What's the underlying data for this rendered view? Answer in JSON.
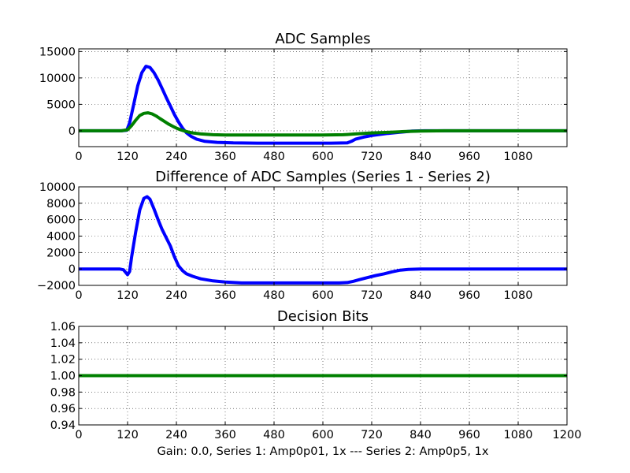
{
  "figure": {
    "xlabel": "Gain: 0.0, Series 1: Amp0p01, 1x --- Series 2: Amp0p5, 1x"
  },
  "colors": {
    "series1": "#0000ff",
    "series2": "#008000"
  },
  "chart_data": [
    {
      "type": "line",
      "title": "ADC Samples",
      "grid": true,
      "xlim": [
        0,
        1200
      ],
      "ylim": [
        -3000,
        15500
      ],
      "xticks": [
        0,
        120,
        240,
        360,
        480,
        600,
        720,
        840,
        960,
        1080
      ],
      "yticks": [
        0,
        5000,
        10000,
        15000
      ],
      "series": [
        {
          "color": "#0000ff",
          "x": [
            0,
            105,
            118,
            125,
            135,
            145,
            155,
            165,
            175,
            185,
            195,
            205,
            215,
            225,
            235,
            245,
            255,
            265,
            275,
            290,
            310,
            340,
            380,
            440,
            500,
            560,
            620,
            660,
            670,
            680,
            700,
            720,
            760,
            800,
            820,
            850,
            900,
            1000,
            1100,
            1200
          ],
          "y": [
            0,
            0,
            100,
            1500,
            5000,
            8500,
            11000,
            12200,
            12000,
            11000,
            9600,
            8000,
            6300,
            4700,
            3100,
            1700,
            500,
            -400,
            -1000,
            -1600,
            -2000,
            -2200,
            -2300,
            -2350,
            -2350,
            -2350,
            -2350,
            -2300,
            -2000,
            -1600,
            -1200,
            -900,
            -500,
            -200,
            -50,
            0,
            0,
            0,
            0,
            0
          ]
        },
        {
          "color": "#008000",
          "x": [
            0,
            105,
            120,
            130,
            140,
            150,
            160,
            170,
            180,
            190,
            200,
            210,
            220,
            230,
            240,
            250,
            260,
            270,
            280,
            300,
            330,
            360,
            400,
            450,
            500,
            550,
            600,
            650,
            660,
            680,
            700,
            720,
            760,
            800,
            840,
            900,
            1000,
            1100,
            1200
          ],
          "y": [
            0,
            0,
            200,
            1000,
            2000,
            2900,
            3300,
            3400,
            3200,
            2800,
            2300,
            1800,
            1300,
            900,
            500,
            200,
            -50,
            -250,
            -400,
            -600,
            -750,
            -800,
            -800,
            -800,
            -800,
            -800,
            -800,
            -750,
            -700,
            -600,
            -500,
            -400,
            -300,
            -150,
            -50,
            0,
            0,
            0,
            0
          ]
        }
      ]
    },
    {
      "type": "line",
      "title": "Difference of ADC Samples (Series 1 - Series 2)",
      "grid": true,
      "xlim": [
        0,
        1200
      ],
      "ylim": [
        -2000,
        10000
      ],
      "xticks": [
        0,
        120,
        240,
        360,
        480,
        600,
        720,
        840,
        960,
        1080
      ],
      "yticks": [
        -2000,
        0,
        2000,
        4000,
        6000,
        8000,
        10000
      ],
      "series": [
        {
          "color": "#0000ff",
          "x": [
            0,
            100,
            110,
            115,
            120,
            125,
            130,
            140,
            150,
            160,
            168,
            175,
            185,
            195,
            205,
            215,
            225,
            235,
            245,
            255,
            265,
            280,
            300,
            330,
            360,
            400,
            480,
            560,
            640,
            660,
            675,
            690,
            710,
            730,
            750,
            770,
            790,
            810,
            840,
            900,
            1000,
            1100,
            1200
          ],
          "y": [
            0,
            0,
            -100,
            -400,
            -700,
            -300,
            1500,
            4500,
            7200,
            8600,
            8800,
            8500,
            7300,
            6000,
            4800,
            3800,
            2800,
            1500,
            400,
            -200,
            -600,
            -900,
            -1200,
            -1450,
            -1600,
            -1700,
            -1700,
            -1700,
            -1700,
            -1650,
            -1500,
            -1300,
            -1050,
            -800,
            -600,
            -350,
            -150,
            -50,
            0,
            0,
            0,
            0,
            0
          ]
        }
      ]
    },
    {
      "type": "line",
      "title": "Decision Bits",
      "grid": true,
      "xlim": [
        0,
        1200
      ],
      "ylim": [
        0.94,
        1.06
      ],
      "xticks": [
        0,
        120,
        240,
        360,
        480,
        600,
        720,
        840,
        960,
        1080,
        1200
      ],
      "yticks": [
        0.94,
        0.96,
        0.98,
        1.0,
        1.02,
        1.04,
        1.06
      ],
      "series": [
        {
          "color": "#008000",
          "x": [
            0,
            1200
          ],
          "y": [
            1.0,
            1.0
          ]
        }
      ]
    }
  ]
}
